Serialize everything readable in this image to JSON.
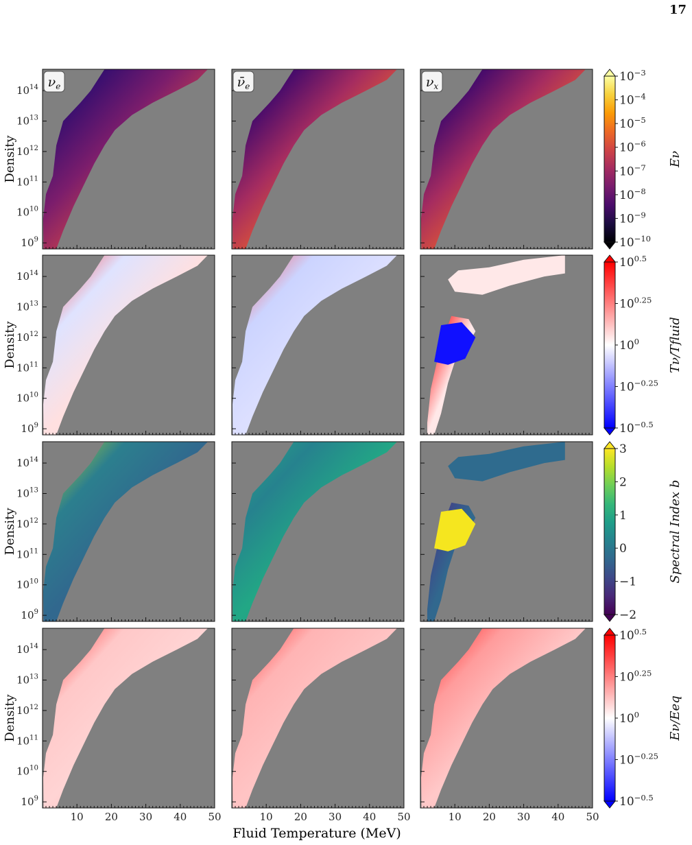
{
  "page_number": "17",
  "chart_data": {
    "type": "heatmap",
    "xlabel": "Fluid Temperature (MeV)",
    "ylabel": "Density",
    "xlim": [
      0,
      50
    ],
    "ylim_log10": [
      8.8,
      14.7
    ],
    "xticks": [
      10,
      20,
      30,
      40,
      50
    ],
    "yticks_log10": [
      9,
      10,
      11,
      12,
      13,
      14
    ],
    "columns": [
      {
        "species": "nu_e",
        "label_base": "ν",
        "label_sub": "e",
        "bar": false
      },
      {
        "species": "nu_e_bar",
        "label_base": "ν̄",
        "label_sub": "e",
        "bar": true
      },
      {
        "species": "nu_x",
        "label_base": "ν",
        "label_sub": "x",
        "bar": false
      }
    ],
    "rows": [
      {
        "quantity": "E_nu",
        "colorbar_label": "Eν",
        "colormap": "inferno",
        "colorbar_log10_range": [
          -10,
          -3
        ],
        "colorbar_ticks": [
          {
            "base": "10",
            "exp": "−3"
          },
          {
            "base": "10",
            "exp": "−4"
          },
          {
            "base": "10",
            "exp": "−5"
          },
          {
            "base": "10",
            "exp": "−6"
          },
          {
            "base": "10",
            "exp": "−7"
          },
          {
            "base": "10",
            "exp": "−8"
          },
          {
            "base": "10",
            "exp": "−9"
          },
          {
            "base": "10",
            "exp": "−10"
          }
        ]
      },
      {
        "quantity": "T_nu/T_fluid",
        "colorbar_label": "Tν/Tfluid",
        "colormap": "bwr",
        "colorbar_log10_range": [
          -0.5,
          0.5
        ],
        "colorbar_ticks": [
          {
            "base": "10",
            "exp": "0.5"
          },
          {
            "base": "10",
            "exp": "0.25"
          },
          {
            "base": "10",
            "exp": "0"
          },
          {
            "base": "10",
            "exp": "−0.25"
          },
          {
            "base": "10",
            "exp": "−0.5"
          }
        ]
      },
      {
        "quantity": "spectral_index_b",
        "colorbar_label": "Spectral Index b",
        "colormap": "viridis",
        "colorbar_range": [
          -2,
          3
        ],
        "colorbar_ticks": [
          {
            "base": "3",
            "exp": ""
          },
          {
            "base": "2",
            "exp": ""
          },
          {
            "base": "1",
            "exp": ""
          },
          {
            "base": "0",
            "exp": ""
          },
          {
            "base": "−1",
            "exp": ""
          },
          {
            "base": "−2",
            "exp": ""
          }
        ]
      },
      {
        "quantity": "E_nu/E_eq",
        "colorbar_label": "Eν/Eeq",
        "colormap": "bwr",
        "colorbar_log10_range": [
          -0.5,
          0.5
        ],
        "colorbar_ticks": [
          {
            "base": "10",
            "exp": "0.5"
          },
          {
            "base": "10",
            "exp": "0.25"
          },
          {
            "base": "10",
            "exp": "0"
          },
          {
            "base": "10",
            "exp": "−0.25"
          },
          {
            "base": "10",
            "exp": "−0.5"
          }
        ]
      }
    ],
    "colors": {
      "background": "#808080",
      "axes": "#111111"
    }
  }
}
